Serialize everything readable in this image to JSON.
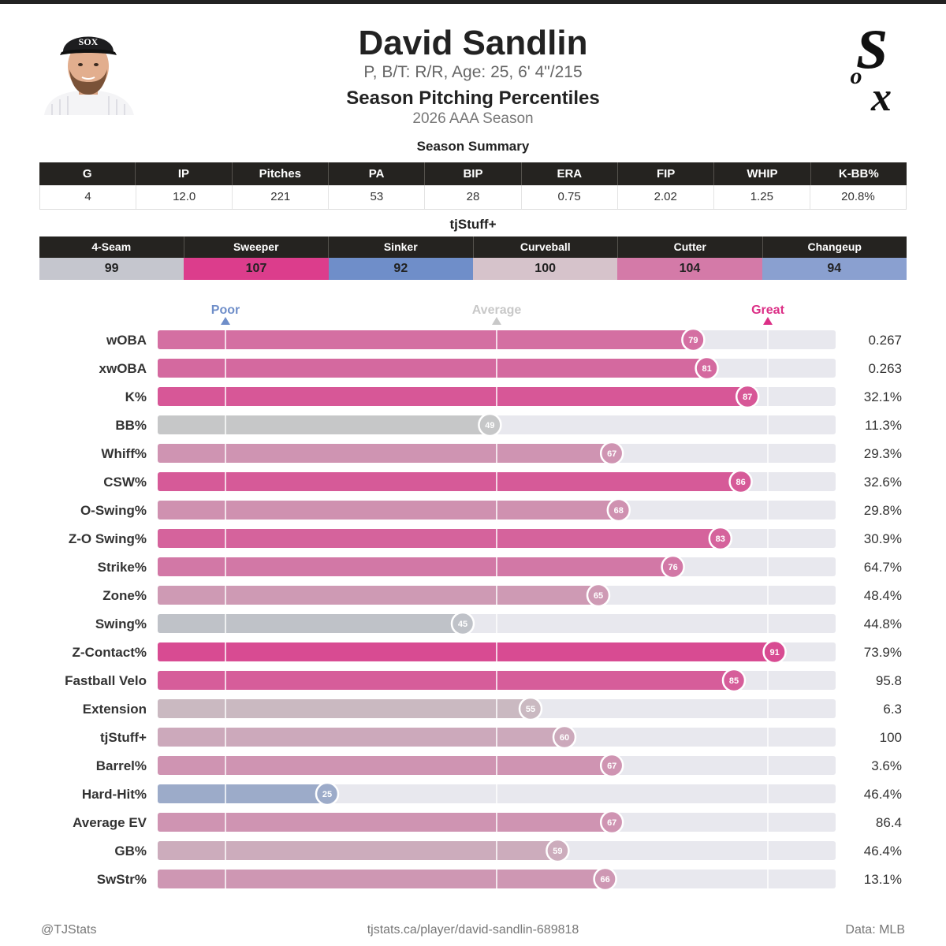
{
  "player": {
    "name": "David Sandlin",
    "bio": "P, B/T: R/R, Age: 25, 6' 4\"/215",
    "chart_title": "Season Pitching Percentiles",
    "season": "2026 AAA Season"
  },
  "summary": {
    "title": "Season Summary",
    "headers": [
      "G",
      "IP",
      "Pitches",
      "PA",
      "BIP",
      "ERA",
      "FIP",
      "WHIP",
      "K-BB%"
    ],
    "values": [
      "4",
      "12.0",
      "221",
      "53",
      "28",
      "0.75",
      "2.02",
      "1.25",
      "20.8%"
    ]
  },
  "tjstuff": {
    "title": "tjStuff+",
    "pitches": [
      {
        "name": "4-Seam",
        "value": "99",
        "color": "#c5c6ce"
      },
      {
        "name": "Sweeper",
        "value": "107",
        "color": "#dc3d8c"
      },
      {
        "name": "Sinker",
        "value": "92",
        "color": "#6f8ec9"
      },
      {
        "name": "Curveball",
        "value": "100",
        "color": "#d6c3cb"
      },
      {
        "name": "Cutter",
        "value": "104",
        "color": "#d47aa8"
      },
      {
        "name": "Changeup",
        "value": "94",
        "color": "#8aa0d0"
      }
    ]
  },
  "chart_data": {
    "type": "bar",
    "xlim": [
      0,
      100
    ],
    "reference_labels": [
      {
        "label": "Poor",
        "value": 10,
        "color": "#6f8ec9"
      },
      {
        "label": "Average",
        "value": 50,
        "color": "#c8c8c8"
      },
      {
        "label": "Great",
        "value": 90,
        "color": "#dc2f86"
      }
    ],
    "categories": [
      "wOBA",
      "xwOBA",
      "K%",
      "BB%",
      "Whiff%",
      "CSW%",
      "O-Swing%",
      "Z-O Swing%",
      "Strike%",
      "Zone%",
      "Swing%",
      "Z-Contact%",
      "Fastball Velo",
      "Extension",
      "tjStuff+",
      "Barrel%",
      "Hard-Hit%",
      "Average EV",
      "GB%",
      "SwStr%"
    ],
    "values": [
      79,
      81,
      87,
      49,
      67,
      86,
      68,
      83,
      76,
      65,
      45,
      91,
      85,
      55,
      60,
      67,
      25,
      67,
      59,
      66
    ],
    "stat_values": [
      "0.267",
      "0.263",
      "32.1%",
      "11.3%",
      "29.3%",
      "32.6%",
      "29.8%",
      "30.9%",
      "64.7%",
      "48.4%",
      "44.8%",
      "73.9%",
      "95.8",
      "6.3",
      "100",
      "3.6%",
      "46.4%",
      "86.4",
      "46.4%",
      "13.1%"
    ]
  },
  "footer": {
    "left": "@TJStats",
    "center": "tjstats.ca/player/david-sandlin-689818",
    "right": "Data: MLB"
  },
  "logo_text": "Sox"
}
